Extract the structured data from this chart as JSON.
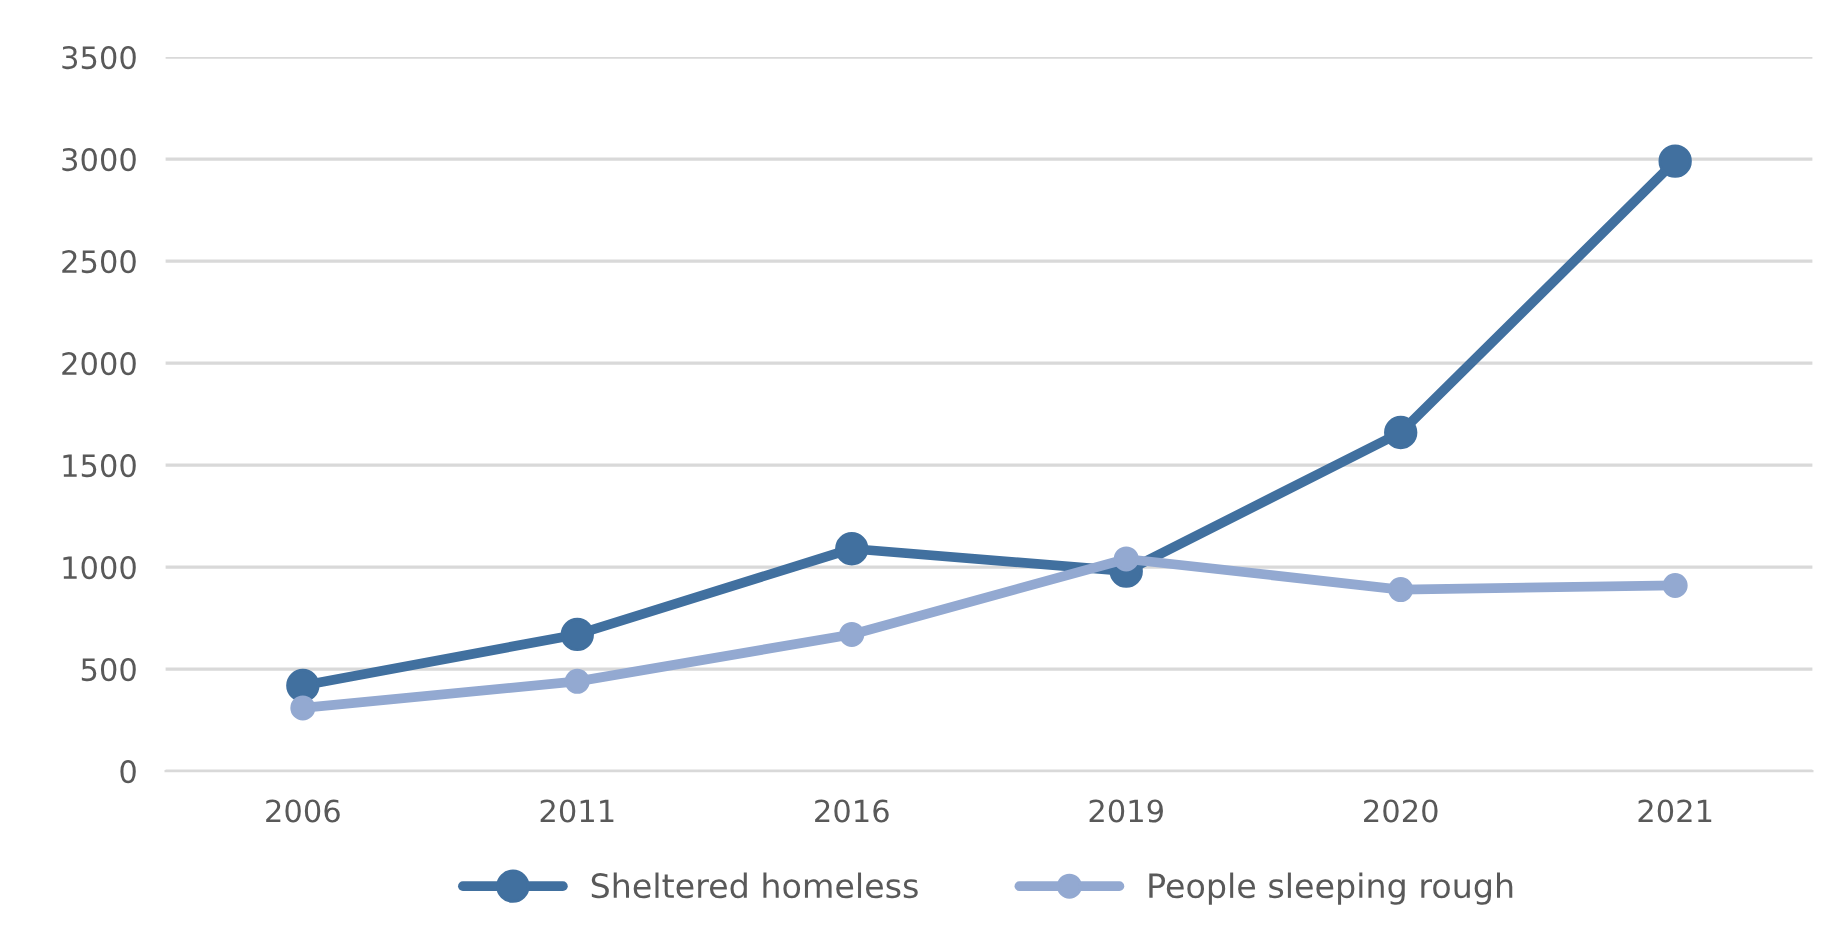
{
  "chart_data": {
    "type": "line",
    "categories": [
      "2006",
      "2011",
      "2016",
      "2019",
      "2020",
      "2021"
    ],
    "series": [
      {
        "name": "Sheltered homeless",
        "color": "#41709f",
        "values": [
          420,
          670,
          1090,
          980,
          1660,
          2990
        ]
      },
      {
        "name": "People sleeping rough",
        "color": "#93a9d1",
        "values": [
          310,
          440,
          670,
          1040,
          890,
          910
        ]
      }
    ],
    "ylim": [
      0,
      3500
    ],
    "yticks": [
      0,
      500,
      1000,
      1500,
      2000,
      2500,
      3000,
      3500
    ],
    "grid": "y",
    "legend": "bottom",
    "marker": "circle",
    "line_style": "solid"
  }
}
